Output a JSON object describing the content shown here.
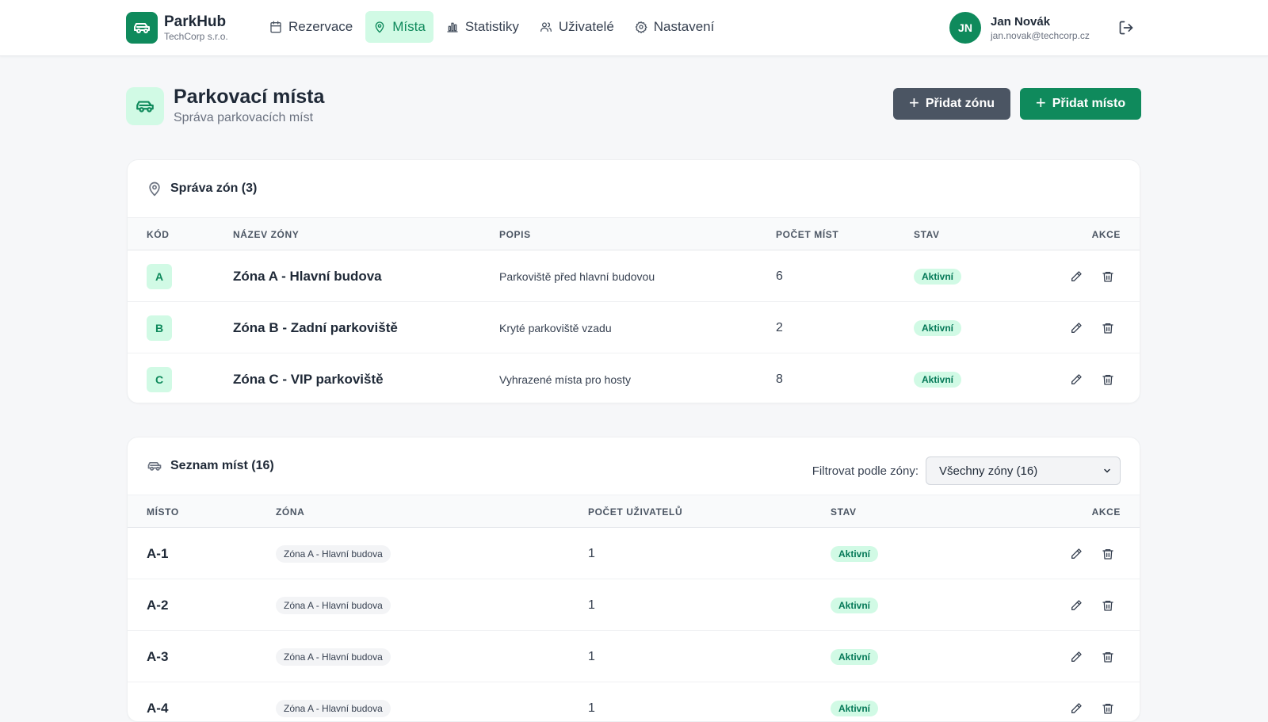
{
  "brand": {
    "name": "ParkHub",
    "org": "TechCorp s.r.o."
  },
  "nav": [
    {
      "label": "Rezervace",
      "icon": "calendar-icon",
      "active": false
    },
    {
      "label": "Místa",
      "icon": "map-pin-icon",
      "active": true
    },
    {
      "label": "Statistiky",
      "icon": "bar-chart-icon",
      "active": false
    },
    {
      "label": "Uživatelé",
      "icon": "users-icon",
      "active": false
    },
    {
      "label": "Nastavení",
      "icon": "gear-icon",
      "active": false
    }
  ],
  "user": {
    "initials": "JN",
    "name": "Jan Novák",
    "email": "jan.novak@techcorp.cz"
  },
  "page": {
    "title": "Parkovací místa",
    "subtitle": "Správa parkovacích míst"
  },
  "actions": {
    "add_zone": "Přidat zónu",
    "add_spot": "Přidat místo"
  },
  "zones": {
    "title": "Správa zón (3)",
    "columns": [
      "KÓD",
      "NÁZEV ZÓNY",
      "POPIS",
      "POČET MÍST",
      "STAV",
      "AKCE"
    ],
    "rows": [
      {
        "code": "A",
        "name": "Zóna A - Hlavní budova",
        "desc": "Parkoviště před hlavní budovou",
        "count": "6",
        "status": "Aktivní"
      },
      {
        "code": "B",
        "name": "Zóna B - Zadní parkoviště",
        "desc": "Kryté parkoviště vzadu",
        "count": "2",
        "status": "Aktivní"
      },
      {
        "code": "C",
        "name": "Zóna C - VIP parkoviště",
        "desc": "Vyhrazené místa pro hosty",
        "count": "8",
        "status": "Aktivní"
      }
    ]
  },
  "spots": {
    "title": "Seznam míst (16)",
    "filter_label": "Filtrovat podle zóny:",
    "filter_value": "Všechny zóny (16)",
    "columns": [
      "MÍSTO",
      "ZÓNA",
      "POČET UŽIVATELŮ",
      "STAV",
      "AKCE"
    ],
    "rows": [
      {
        "spot": "A-1",
        "zone": "Zóna A - Hlavní budova",
        "users": "1",
        "status": "Aktivní"
      },
      {
        "spot": "A-2",
        "zone": "Zóna A - Hlavní budova",
        "users": "1",
        "status": "Aktivní"
      },
      {
        "spot": "A-3",
        "zone": "Zóna A - Hlavní budova",
        "users": "1",
        "status": "Aktivní"
      },
      {
        "spot": "A-4",
        "zone": "Zóna A - Hlavní budova",
        "users": "1",
        "status": "Aktivní"
      }
    ]
  },
  "colors": {
    "accent": "#0f8a5c",
    "accent_light": "#d1fae5",
    "secondary_button": "#4b5563"
  }
}
